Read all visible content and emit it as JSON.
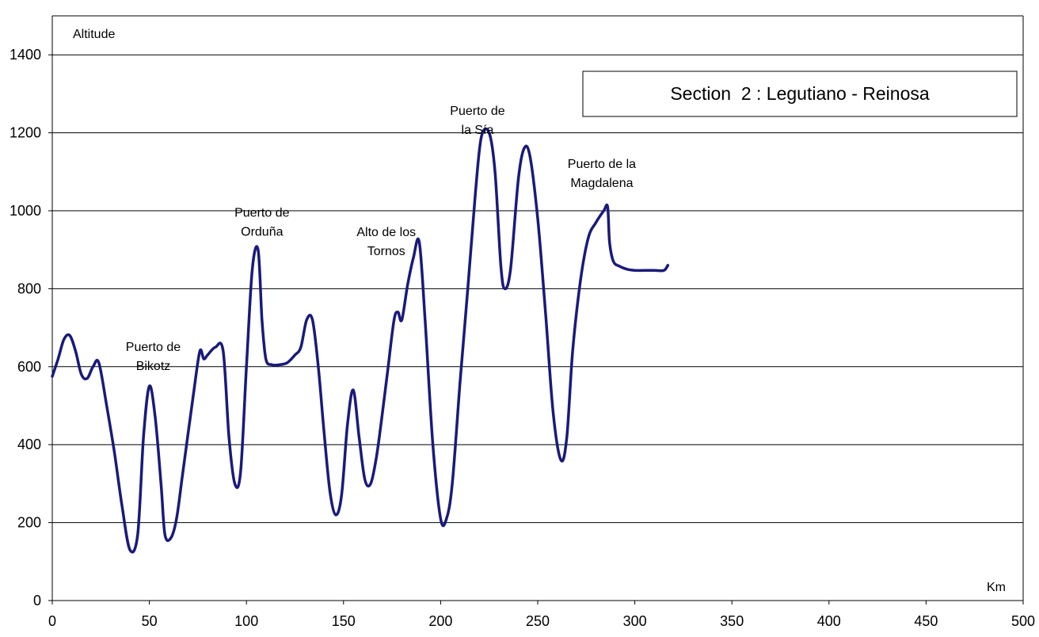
{
  "chart_data": {
    "type": "line",
    "title": "Section  2 : Legutiano - Reinosa",
    "xlabel": "Km",
    "ylabel": "Altitude",
    "xlim": [
      0,
      500
    ],
    "ylim": [
      0,
      1500
    ],
    "x_ticks": [
      "0",
      "50",
      "100",
      "150",
      "200",
      "250",
      "300",
      "350",
      "400",
      "450",
      "500"
    ],
    "y_ticks": [
      "0",
      "200",
      "400",
      "600",
      "800",
      "1000",
      "1200",
      "1400"
    ],
    "grid": "horizontal",
    "colors": {
      "line": "#1a1a7a",
      "grid": "#000000"
    },
    "series": [
      {
        "x": [
          0,
          3,
          6,
          9,
          12,
          15,
          18,
          21,
          24,
          28,
          32,
          36,
          40,
          44,
          47,
          50,
          53,
          56,
          58,
          61,
          64,
          67,
          70,
          73,
          76,
          78,
          80,
          84,
          88,
          91,
          94,
          97,
          100,
          103,
          106,
          108,
          110,
          113,
          117,
          121,
          125,
          128,
          131,
          134,
          137,
          140,
          143,
          146,
          149,
          152,
          155,
          158,
          161,
          164,
          167,
          170,
          173,
          176,
          178,
          180,
          183,
          186,
          189,
          192,
          196,
          200,
          203,
          206,
          210,
          214,
          218,
          221,
          225,
          228,
          231,
          233,
          236,
          240,
          243,
          246,
          250,
          254,
          258,
          262,
          265,
          268,
          272,
          276,
          280,
          284,
          286,
          287,
          289,
          292,
          296,
          300,
          305,
          310,
          315,
          317
        ],
        "values": [
          575,
          620,
          670,
          680,
          640,
          580,
          570,
          600,
          610,
          500,
          380,
          240,
          130,
          170,
          420,
          550,
          470,
          300,
          170,
          160,
          210,
          320,
          430,
          540,
          640,
          620,
          630,
          650,
          640,
          420,
          300,
          330,
          600,
          850,
          900,
          720,
          620,
          605,
          605,
          610,
          630,
          650,
          720,
          720,
          600,
          430,
          280,
          220,
          270,
          450,
          540,
          420,
          310,
          300,
          370,
          480,
          600,
          720,
          740,
          720,
          810,
          880,
          920,
          720,
          400,
          210,
          210,
          300,
          560,
          800,
          1050,
          1190,
          1200,
          1100,
          860,
          800,
          850,
          1080,
          1160,
          1140,
          980,
          740,
          480,
          360,
          420,
          640,
          820,
          930,
          970,
          1000,
          1010,
          920,
          870,
          858,
          850,
          847,
          847,
          847,
          847,
          860
        ]
      }
    ],
    "annotations": [
      {
        "lines": [
          "Puerto de",
          "Bikotz"
        ],
        "x": 52,
        "y": 640
      },
      {
        "lines": [
          "Puerto de",
          "Orduña"
        ],
        "x": 108,
        "y": 985
      },
      {
        "lines": [
          "Alto de los",
          "Tornos"
        ],
        "x": 172,
        "y": 935
      },
      {
        "lines": [
          "Puerto de",
          "la Sía"
        ],
        "x": 219,
        "y": 1246
      },
      {
        "lines": [
          "Puerto de la",
          "Magdalena"
        ],
        "x": 283,
        "y": 1110
      }
    ]
  }
}
